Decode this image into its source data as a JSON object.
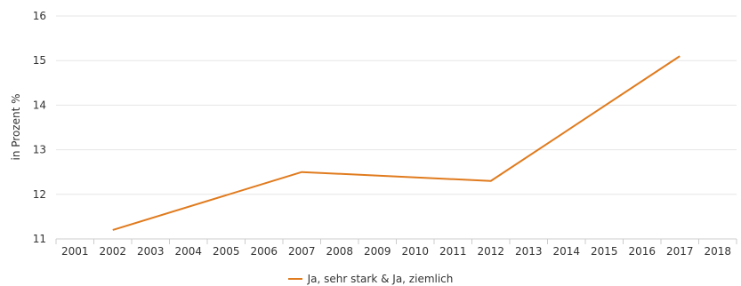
{
  "chart_data": {
    "type": "line",
    "ylabel": "in Prozent %",
    "ylim": [
      11,
      16
    ],
    "yticks": [
      11,
      12,
      13,
      14,
      15,
      16
    ],
    "categories": [
      "2001",
      "2002",
      "2003",
      "2004",
      "2005",
      "2006",
      "2007",
      "2008",
      "2009",
      "2010",
      "2011",
      "2012",
      "2013",
      "2014",
      "2015",
      "2016",
      "2017",
      "2018"
    ],
    "series": [
      {
        "name": "Ja, sehr stark & Ja, ziemlich",
        "color": "#e07b1e",
        "points": [
          {
            "x": "2002",
            "y": 11.2
          },
          {
            "x": "2007",
            "y": 12.5
          },
          {
            "x": "2012",
            "y": 12.3
          },
          {
            "x": "2017",
            "y": 15.1
          }
        ]
      }
    ],
    "grid": "horizontal",
    "legend_position": "bottom"
  }
}
